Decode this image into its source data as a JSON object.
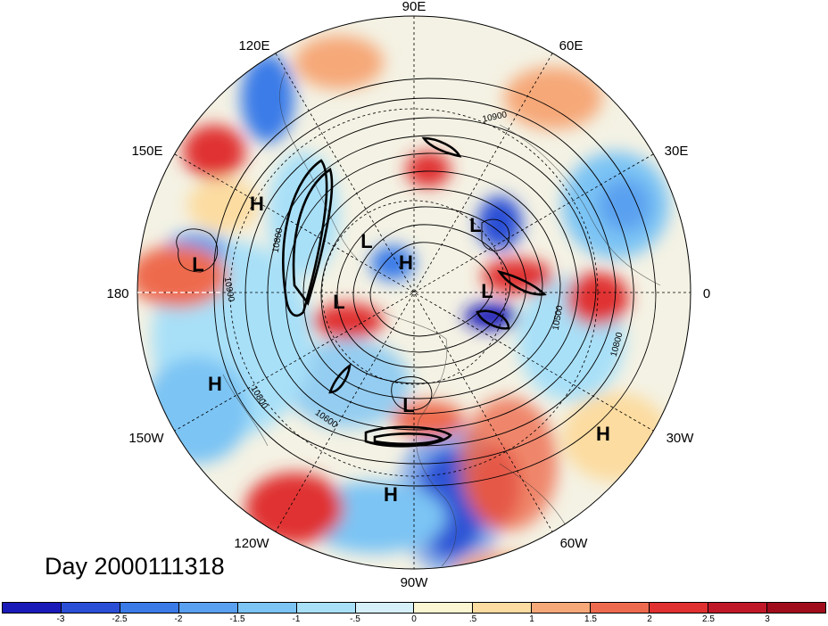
{
  "map": {
    "title": "Day 2000111318",
    "longitude_labels": {
      "lon_90E": "90E",
      "lon_120E": "120E",
      "lon_60E": "60E",
      "lon_150E": "150E",
      "lon_30E": "30E",
      "lon_180": "180",
      "lon_0": "0",
      "lon_150W": "150W",
      "lon_30W": "30W",
      "lon_120W": "120W",
      "lon_60W": "60W",
      "lon_90W": "90W"
    },
    "pressure_centers": [
      "H",
      "L",
      "L",
      "H",
      "L",
      "L",
      "L",
      "H",
      "L",
      "H",
      "H"
    ],
    "contour_labels": [
      "10900",
      "10800",
      "10900",
      "10800",
      "10600",
      "10500",
      "10800"
    ],
    "contour_levels": [
      10500,
      10600,
      10800,
      10900
    ]
  },
  "colorbar": {
    "tick_labels": [
      "-3",
      "-2.5",
      "-2",
      "-1.5",
      "-1",
      "-.5",
      "0",
      ".5",
      "1",
      "1.5",
      "2",
      "2.5",
      "3"
    ],
    "colors": [
      "#1a1ab8",
      "#2a4fd6",
      "#3a7be8",
      "#5aa0f0",
      "#7cc4f4",
      "#a8e0f8",
      "#d6f0fa",
      "#fcf6d2",
      "#fcdca0",
      "#f6a878",
      "#ee6a4e",
      "#e03030",
      "#c01828",
      "#a00c1c"
    ]
  }
}
